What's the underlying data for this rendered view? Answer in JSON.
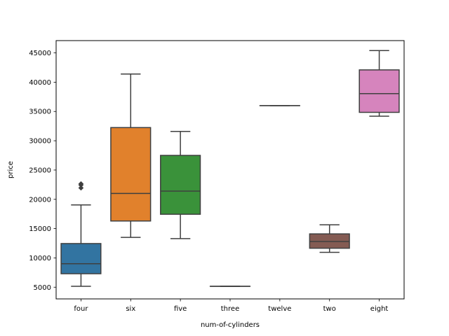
{
  "chart_data": {
    "type": "box",
    "xlabel": "num-of-cylinders",
    "ylabel": "price",
    "ylim": [
      3000,
      47100
    ],
    "yticks": [
      5000,
      10000,
      15000,
      20000,
      25000,
      30000,
      35000,
      40000,
      45000
    ],
    "grid": false,
    "line_color": "#3f3f3f",
    "categories": [
      "four",
      "six",
      "five",
      "three",
      "twelve",
      "two",
      "eight"
    ],
    "boxes": [
      {
        "category": "four",
        "color": "#3274a1",
        "whisker_low": 5150,
        "q1": 7300,
        "median": 9000,
        "q3": 12450,
        "whisker_high": 19050,
        "outliers": [
          21950,
          22450,
          22650
        ]
      },
      {
        "category": "six",
        "color": "#e1812c",
        "whisker_low": 13500,
        "q1": 16300,
        "median": 21000,
        "q3": 32250,
        "whisker_high": 41400,
        "outliers": []
      },
      {
        "category": "five",
        "color": "#3a923a",
        "whisker_low": 13300,
        "q1": 17450,
        "median": 21400,
        "q3": 27500,
        "whisker_high": 31600,
        "outliers": []
      },
      {
        "category": "three",
        "color": "#c03d3e",
        "whisker_low": 5150,
        "q1": 5150,
        "median": 5150,
        "q3": 5150,
        "whisker_high": 5150,
        "outliers": []
      },
      {
        "category": "twelve",
        "color": "#9372b2",
        "whisker_low": 36000,
        "q1": 36000,
        "median": 36000,
        "q3": 36000,
        "whisker_high": 36000,
        "outliers": []
      },
      {
        "category": "two",
        "color": "#845b53",
        "whisker_low": 10950,
        "q1": 11650,
        "median": 12800,
        "q3": 14100,
        "whisker_high": 15650,
        "outliers": []
      },
      {
        "category": "eight",
        "color": "#d684bd",
        "whisker_low": 34200,
        "q1": 34850,
        "median": 38050,
        "q3": 42100,
        "whisker_high": 45400,
        "outliers": []
      }
    ]
  }
}
